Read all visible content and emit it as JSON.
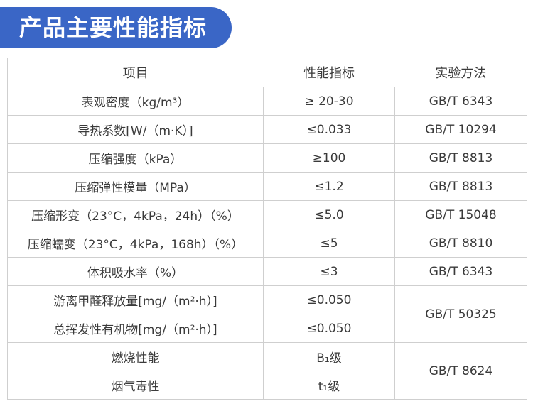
{
  "title": "产品主要性能指标",
  "table": {
    "headers": [
      "项目",
      "性能指标",
      "实验方法"
    ],
    "rows": [
      {
        "item": "表观密度（kg/m³）",
        "value": "≥ 20-30",
        "method": "GB/T 6343"
      },
      {
        "item": "导热系数[W/（m·K）]",
        "value": "≤0.033",
        "method": "GB/T 10294"
      },
      {
        "item": "压缩强度（kPa）",
        "value": "≥100",
        "method": "GB/T 8813"
      },
      {
        "item": "压缩弹性模量（MPa）",
        "value": "≤1.2",
        "method": "GB/T 8813"
      },
      {
        "item": "压缩形变（23°C，4kPa，24h）（%）",
        "value": "≤5.0",
        "method": "GB/T 15048"
      },
      {
        "item": "压缩蠕变（23°C，4kPa，168h）（%）",
        "value": "≤5",
        "method": "GB/T 8810"
      },
      {
        "item": "体积吸水率（%）",
        "value": "≤3",
        "method": "GB/T 6343"
      },
      {
        "item": "游离甲醛释放量[mg/（m²·h）]",
        "value": "≤0.050",
        "method": "GB/T 50325"
      },
      {
        "item": "总挥发性有机物[mg/（m²·h）]",
        "value": "≤0.050"
      },
      {
        "item": "燃烧性能",
        "value": "B₁级",
        "method": "GB/T 8624"
      },
      {
        "item": "烟气毒性",
        "value": "t₁级"
      }
    ]
  }
}
